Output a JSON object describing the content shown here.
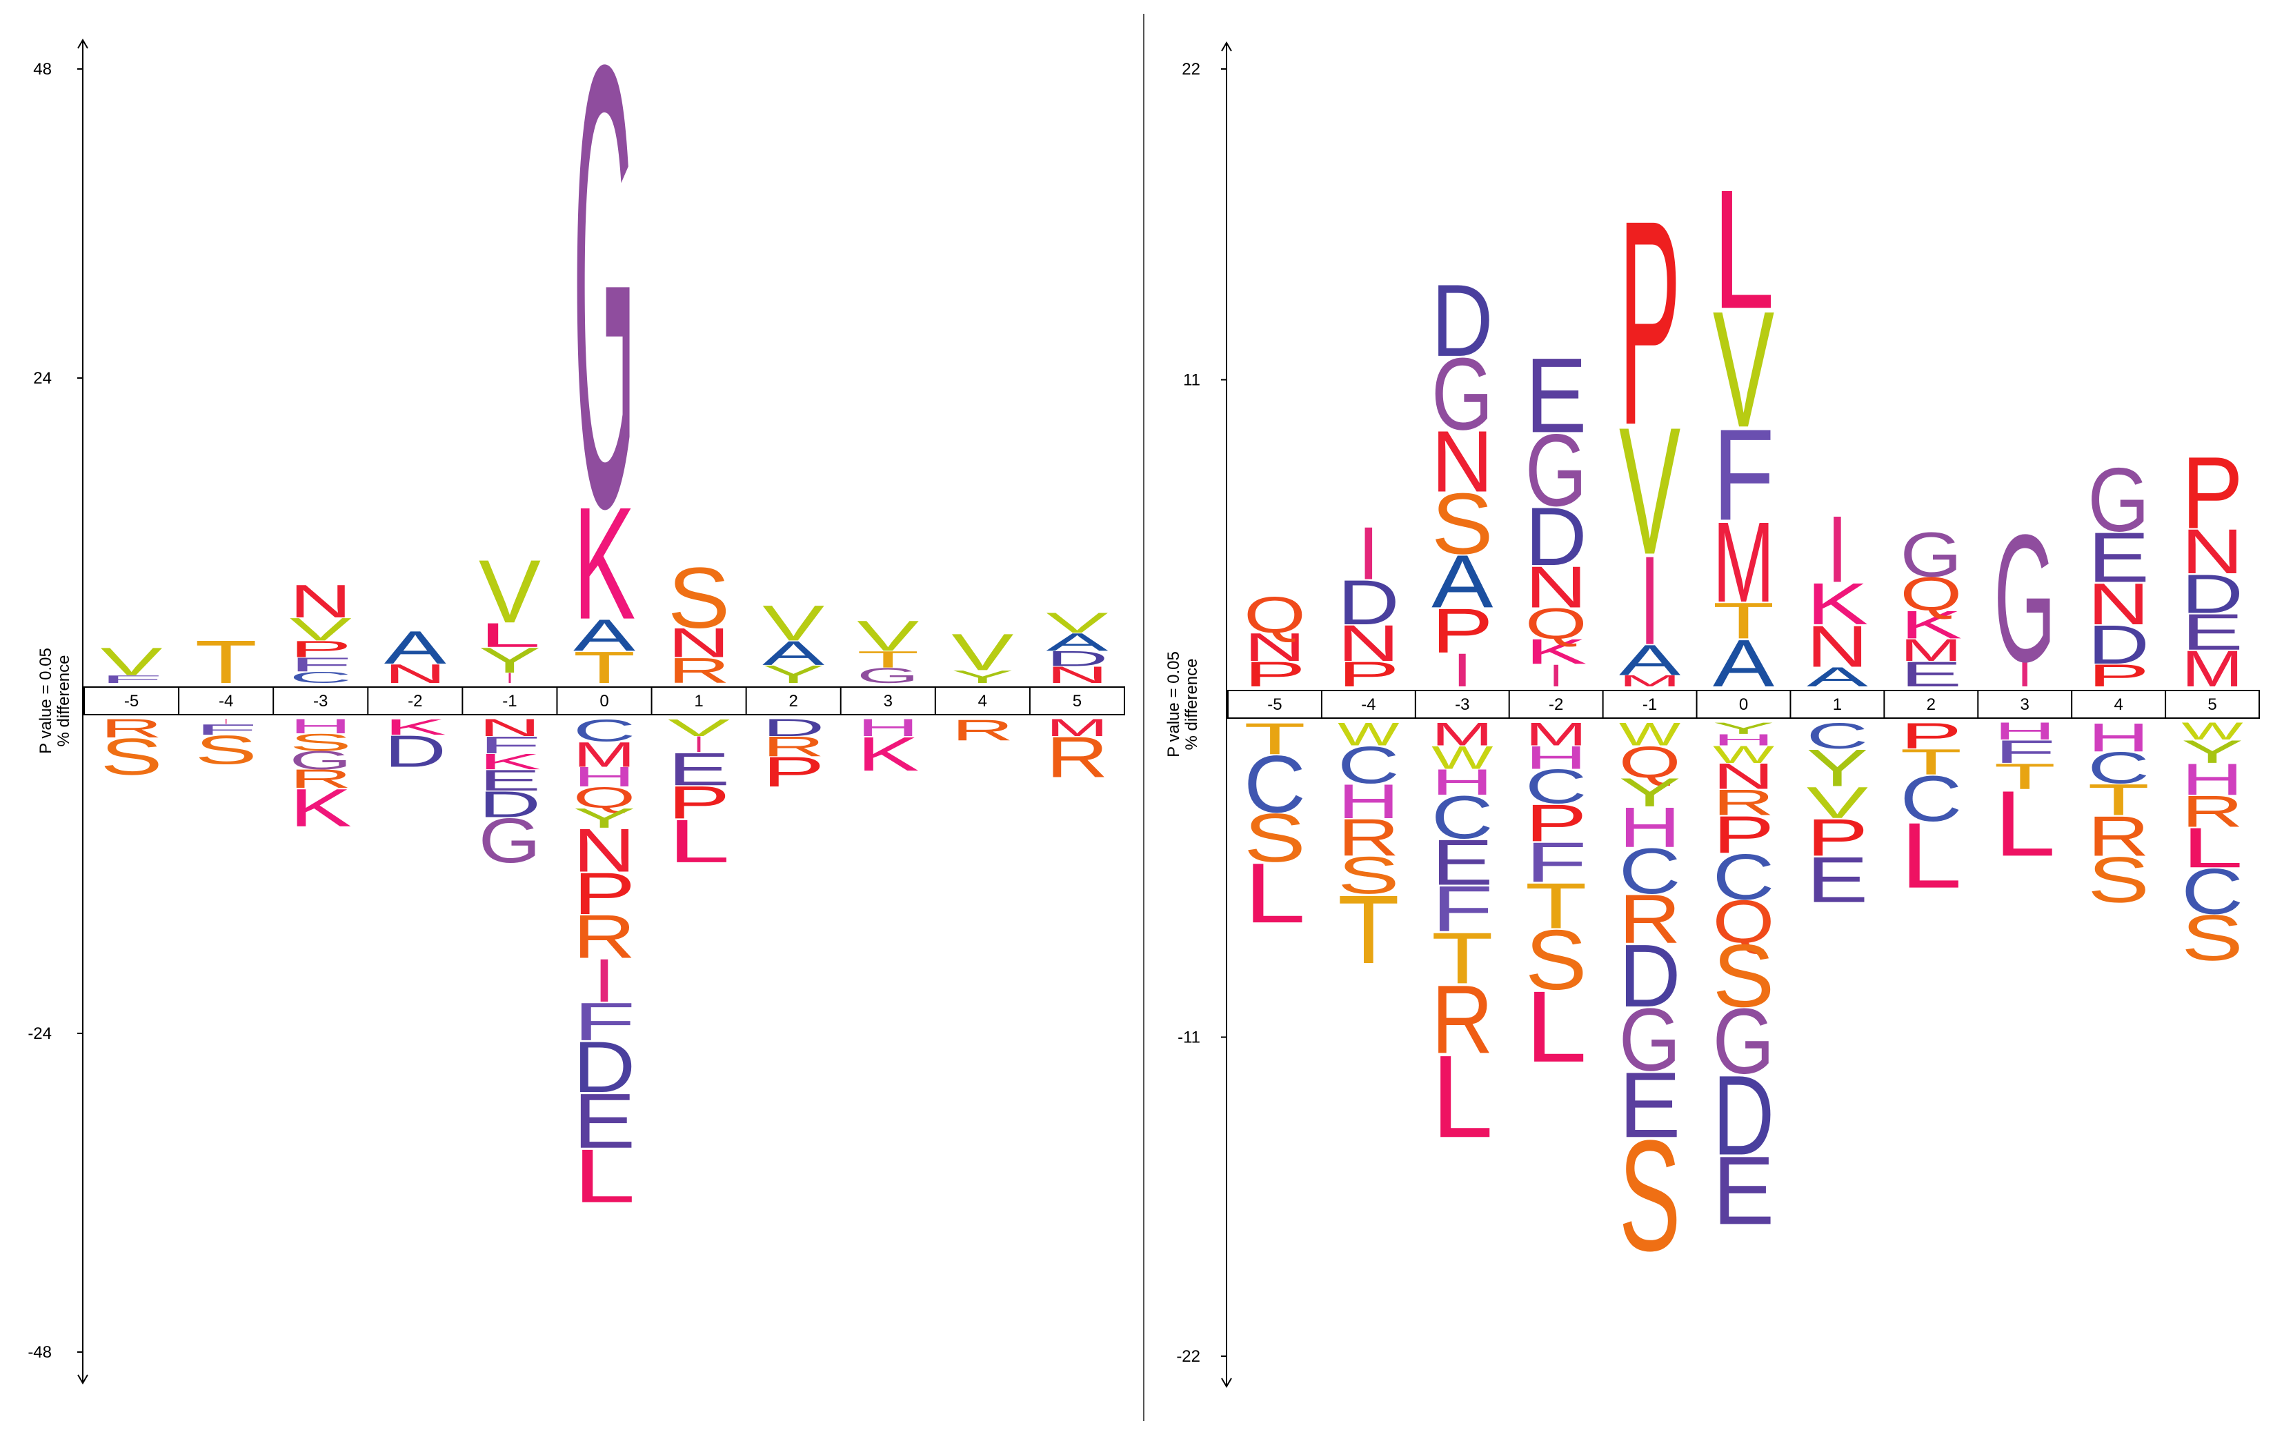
{
  "chart_data": [
    {
      "type": "sequence-logo",
      "ylabel": "% difference",
      "ylabel2": "P value = 0.05",
      "ylim": [
        -48,
        48
      ],
      "yticks": [
        "48",
        "24",
        "-24",
        "-48"
      ],
      "positions": [
        "-5",
        "-4",
        "-3",
        "-2",
        "-1",
        "0",
        "1",
        "2",
        "3",
        "4",
        "5"
      ],
      "columns": [
        {
          "up": [
            [
              "V",
              2.2
            ],
            [
              "F",
              0.6
            ]
          ],
          "down": [
            [
              "R",
              1.4
            ],
            [
              "S",
              2.8
            ]
          ]
        },
        {
          "up": [
            [
              "T",
              3.4
            ]
          ],
          "down": [
            [
              "I",
              0.4
            ],
            [
              "F",
              0.8
            ],
            [
              "S",
              2.2
            ]
          ]
        },
        {
          "up": [
            [
              "N",
              2.6
            ],
            [
              "V",
              1.8
            ],
            [
              "P",
              1.3
            ],
            [
              "F",
              1.1
            ],
            [
              "C",
              0.9
            ]
          ],
          "down": [
            [
              "H",
              1.1
            ],
            [
              "S",
              1.3
            ],
            [
              "G",
              1.4
            ],
            [
              "R",
              1.4
            ],
            [
              "K",
              2.9
            ]
          ]
        },
        {
          "up": [
            [
              "A",
              2.6
            ],
            [
              "N",
              1.5
            ]
          ],
          "down": [
            [
              "K",
              1.2
            ],
            [
              "D",
              2.4
            ]
          ]
        },
        {
          "up": [
            [
              "V",
              5.0
            ],
            [
              "L",
              1.9
            ],
            [
              "Y",
              2.0
            ],
            [
              "I",
              0.8
            ]
          ],
          "down": [
            [
              "N",
              1.3
            ],
            [
              "F",
              1.3
            ],
            [
              "K",
              1.2
            ],
            [
              "E",
              1.6
            ],
            [
              "D",
              2.0
            ],
            [
              "G",
              3.4
            ]
          ]
        },
        {
          "up": [
            [
              "G",
              35.0
            ],
            [
              "K",
              8.9
            ],
            [
              "A",
              2.5
            ],
            [
              "T",
              2.5
            ]
          ],
          "down": [
            [
              "C",
              1.7
            ],
            [
              "M",
              1.9
            ],
            [
              "H",
              1.5
            ],
            [
              "Q",
              1.6
            ],
            [
              "Y",
              1.5
            ],
            [
              "N",
              3.3
            ],
            [
              "P",
              3.2
            ],
            [
              "R",
              3.3
            ],
            [
              "I",
              3.3
            ],
            [
              "F",
              2.9
            ],
            [
              "D",
              3.9
            ],
            [
              "E",
              4.2
            ],
            [
              "L",
              4.1
            ]
          ]
        },
        {
          "up": [
            [
              "S",
              4.8
            ],
            [
              "N",
              2.3
            ],
            [
              "R",
              2.0
            ]
          ],
          "down": [
            [
              "V",
              1.3
            ],
            [
              "I",
              1.2
            ],
            [
              "E",
              2.5
            ],
            [
              "P",
              2.5
            ],
            [
              "L",
              3.3
            ]
          ]
        },
        {
          "up": [
            [
              "V",
              2.8
            ],
            [
              "A",
              1.9
            ],
            [
              "Y",
              1.4
            ]
          ],
          "down": [
            [
              "D",
              1.3
            ],
            [
              "R",
              1.5
            ],
            [
              "P",
              2.3
            ]
          ]
        },
        {
          "up": [
            [
              "V",
              2.4
            ],
            [
              "T",
              1.3
            ],
            [
              "G",
              1.2
            ]
          ],
          "down": [
            [
              "H",
              1.3
            ],
            [
              "K",
              2.6
            ]
          ]
        },
        {
          "up": [
            [
              "V",
              2.9
            ],
            [
              "Y",
              1.0
            ]
          ],
          "down": [
            [
              "R",
              1.6
            ]
          ]
        },
        {
          "up": [
            [
              "V",
              1.6
            ],
            [
              "A",
              1.4
            ],
            [
              "D",
              1.2
            ],
            [
              "N",
              1.3
            ]
          ],
          "down": [
            [
              "M",
              1.3
            ],
            [
              "R",
              3.1
            ]
          ]
        }
      ]
    },
    {
      "type": "sequence-logo",
      "ylabel": "% difference",
      "ylabel2": "P value = 0.05",
      "ylim": [
        -22,
        22
      ],
      "yticks": [
        "22",
        "11",
        "-11",
        "-22"
      ],
      "positions": [
        "-5",
        "-4",
        "-3",
        "-2",
        "-1",
        "0",
        "1",
        "2",
        "3",
        "4",
        "5"
      ],
      "columns": [
        {
          "up": [
            [
              "Q",
              1.3
            ],
            [
              "N",
              1.0
            ],
            [
              "P",
              0.9
            ]
          ],
          "down": [
            [
              "T",
              1.1
            ],
            [
              "C",
              2.0
            ],
            [
              "S",
              1.7
            ],
            [
              "L",
              2.1
            ]
          ]
        },
        {
          "up": [
            [
              "I",
              1.9
            ],
            [
              "D",
              1.6
            ],
            [
              "N",
              1.3
            ],
            [
              "P",
              0.9
            ]
          ],
          "down": [
            [
              "W",
              0.8
            ],
            [
              "C",
              1.3
            ],
            [
              "H",
              1.2
            ],
            [
              "R",
              1.3
            ],
            [
              "S",
              1.3
            ],
            [
              "T",
              2.4
            ]
          ]
        },
        {
          "up": [
            [
              "D",
              2.6
            ],
            [
              "G",
              2.6
            ],
            [
              "N",
              2.2
            ],
            [
              "S",
              2.2
            ],
            [
              "A",
              1.9
            ],
            [
              "P",
              1.6
            ],
            [
              "I",
              1.2
            ]
          ],
          "down": [
            [
              "M",
              0.8
            ],
            [
              "W",
              0.8
            ],
            [
              "H",
              0.9
            ],
            [
              "C",
              1.5
            ],
            [
              "E",
              1.6
            ],
            [
              "F",
              1.6
            ],
            [
              "T",
              1.8
            ],
            [
              "R",
              2.4
            ],
            [
              "L",
              2.9
            ]
          ]
        },
        {
          "up": [
            [
              "E",
              2.7
            ],
            [
              "G",
              2.6
            ],
            [
              "D",
              2.1
            ],
            [
              "N",
              1.5
            ],
            [
              "Q",
              1.1
            ],
            [
              "K",
              0.9
            ],
            [
              "I",
              0.8
            ]
          ],
          "down": [
            [
              "M",
              0.8
            ],
            [
              "H",
              0.8
            ],
            [
              "C",
              1.2
            ],
            [
              "P",
              1.3
            ],
            [
              "F",
              1.4
            ],
            [
              "T",
              1.6
            ],
            [
              "S",
              2.1
            ],
            [
              "L",
              2.5
            ]
          ]
        },
        {
          "up": [
            [
              "P",
              7.4
            ],
            [
              "V",
              4.6
            ],
            [
              "I",
              3.2
            ],
            [
              "A",
              1.1
            ],
            [
              "M",
              0.4
            ]
          ],
          "down": [
            [
              "W",
              0.8
            ],
            [
              "Q",
              1.1
            ],
            [
              "Y",
              1.0
            ],
            [
              "H",
              1.4
            ],
            [
              "C",
              1.6
            ],
            [
              "R",
              1.7
            ],
            [
              "D",
              2.2
            ],
            [
              "G",
              2.2
            ],
            [
              "E",
              2.3
            ],
            [
              "S",
              3.9
            ]
          ]
        },
        {
          "up": [
            [
              "L",
              4.3
            ],
            [
              "V",
              4.2
            ],
            [
              "F",
              3.3
            ],
            [
              "M",
              2.9
            ],
            [
              "T",
              1.3
            ],
            [
              "A",
              1.7
            ]
          ],
          "down": [
            [
              "Y",
              0.4
            ],
            [
              "H",
              0.4
            ],
            [
              "W",
              0.6
            ],
            [
              "N",
              0.9
            ],
            [
              "R",
              0.9
            ],
            [
              "P",
              1.3
            ],
            [
              "C",
              1.6
            ],
            [
              "Q",
              1.5
            ],
            [
              "S",
              2.2
            ],
            [
              "G",
              2.3
            ],
            [
              "D",
              2.8
            ],
            [
              "E",
              2.4
            ]
          ]
        },
        {
          "up": [
            [
              "I",
              2.4
            ],
            [
              "K",
              1.5
            ],
            [
              "N",
              1.5
            ],
            [
              "A",
              0.7
            ]
          ],
          "down": [
            [
              "C",
              0.9
            ],
            [
              "Y",
              1.3
            ],
            [
              "V",
              1.1
            ],
            [
              "P",
              1.3
            ],
            [
              "E",
              1.6
            ]
          ]
        },
        {
          "up": [
            [
              "G",
              1.6
            ],
            [
              "Q",
              1.2
            ],
            [
              "K",
              1.0
            ],
            [
              "M",
              0.8
            ],
            [
              "E",
              0.9
            ]
          ],
          "down": [
            [
              "P",
              0.9
            ],
            [
              "T",
              0.9
            ],
            [
              "C",
              1.6
            ],
            [
              "L",
              2.3
            ]
          ]
        },
        {
          "up": [
            [
              "G",
              4.6
            ],
            [
              "I",
              0.9
            ]
          ],
          "down": [
            [
              "H",
              0.6
            ],
            [
              "F",
              0.8
            ],
            [
              "T",
              0.9
            ],
            [
              "L",
              2.3
            ]
          ]
        },
        {
          "up": [
            [
              "G",
              2.3
            ],
            [
              "E",
              1.8
            ],
            [
              "N",
              1.5
            ],
            [
              "D",
              1.4
            ],
            [
              "P",
              0.8
            ]
          ],
          "down": [
            [
              "H",
              1.0
            ],
            [
              "C",
              1.1
            ],
            [
              "T",
              1.1
            ],
            [
              "R",
              1.4
            ],
            [
              "S",
              1.6
            ]
          ]
        },
        {
          "up": [
            [
              "P",
              2.6
            ],
            [
              "N",
              1.6
            ],
            [
              "D",
              1.4
            ],
            [
              "E",
              1.3
            ],
            [
              "M",
              1.3
            ]
          ],
          "down": [
            [
              "W",
              0.6
            ],
            [
              "Y",
              0.8
            ],
            [
              "H",
              1.1
            ],
            [
              "R",
              1.1
            ],
            [
              "L",
              1.4
            ],
            [
              "C",
              1.6
            ],
            [
              "S",
              1.6
            ]
          ]
        }
      ]
    }
  ],
  "colors": {
    "A": "#1b4fa0",
    "C": "#3f56b0",
    "D": "#4a3f9e",
    "E": "#5a3f9e",
    "F": "#6a4fb0",
    "G": "#8f4d9e",
    "H": "#d03fbe",
    "I": "#e4267a",
    "K": "#f0167a",
    "L": "#ee1262",
    "M": "#ee1f3f",
    "N": "#ee1f32",
    "P": "#ee1f1f",
    "Q": "#f04a1a",
    "R": "#ef5d14",
    "S": "#ef6f14",
    "T": "#e8a412",
    "V": "#b7cc12",
    "W": "#c7d412",
    "Y": "#a7c412"
  }
}
